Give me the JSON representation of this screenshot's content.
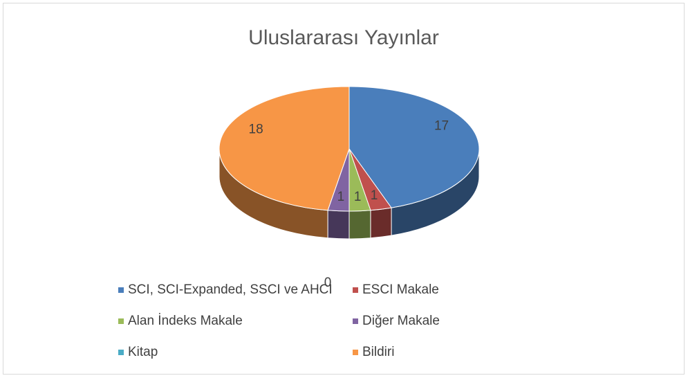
{
  "chart_data": {
    "type": "pie3d",
    "title": "Uluslararası Yayınlar",
    "categories": [
      "SCI, SCI-Expanded, SSCI ve AHCI",
      "ESCI Makale",
      "Alan İndeks Makale",
      "Diğer Makale",
      "Kitap",
      "Bildiri"
    ],
    "values": [
      17,
      1,
      1,
      1,
      0,
      18
    ],
    "colors": [
      "#4a7ebb",
      "#c0504d",
      "#9bbb59",
      "#8064a2",
      "#4bacc6",
      "#f79646"
    ],
    "legend": "bottom"
  }
}
